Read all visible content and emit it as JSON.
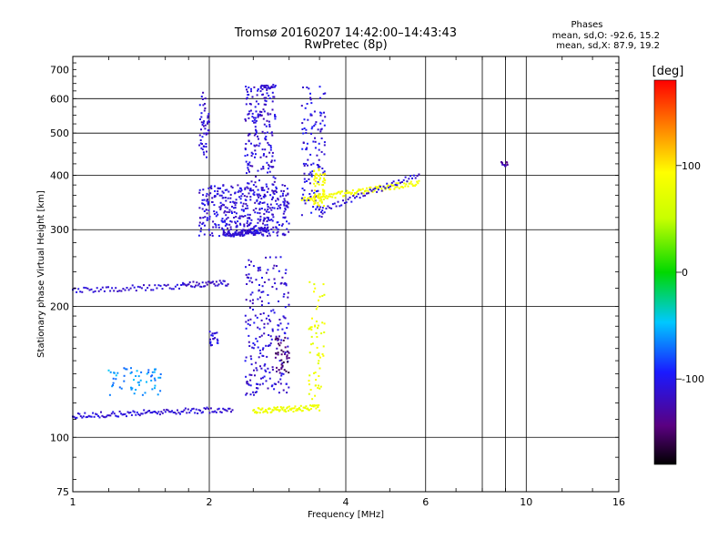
{
  "chart_data": {
    "type": "scatter",
    "title": "Tromsø 20160207 14:42:00–14:43:43",
    "subtitle": "RwPretec (8p)",
    "xlabel": "Frequency [MHz]",
    "ylabel": "Stationary phase Virtual Height [km]",
    "x_scale": "log",
    "y_scale": "log",
    "xlim": [
      1,
      16
    ],
    "ylim": [
      75,
      750
    ],
    "x_ticks": [
      "1",
      "2",
      "4",
      "6",
      "10",
      "16"
    ],
    "x_gridlines": [
      2,
      4,
      6,
      8,
      9,
      10
    ],
    "y_ticks": [
      "75",
      "100",
      "200",
      "300",
      "400",
      "500",
      "600",
      "700"
    ],
    "y_gridlines": [
      100,
      200,
      300,
      400,
      500,
      600
    ],
    "grid": true,
    "legend": {
      "heading": "Phases",
      "line1": "mean, sd,O:  -92.6, 15.2",
      "line2": "mean, sd,X:  87.9, 19.2"
    },
    "colorbar": {
      "label": "[deg]",
      "range": [
        -180,
        180
      ],
      "ticks": [
        "-100",
        "0",
        "100"
      ]
    },
    "traces": [
      {
        "f_start": 1.0,
        "f_end": 2.25,
        "h_start": 112,
        "h_end": 116,
        "phase": -110,
        "n": 120
      },
      {
        "f_start": 1.0,
        "f_end": 1.75,
        "h_start": 218,
        "h_end": 222,
        "phase": -110,
        "n": 60
      },
      {
        "f_start": 1.75,
        "f_end": 2.2,
        "h_start": 224,
        "h_end": 226,
        "phase": -115,
        "n": 40
      },
      {
        "f_start": 2.15,
        "f_end": 2.7,
        "h_start": 292,
        "h_end": 300,
        "phase": -110,
        "n": 100
      },
      {
        "f_start": 2.5,
        "f_end": 3.5,
        "h_start": 115,
        "h_end": 117,
        "phase": 80,
        "n": 80
      },
      {
        "f_start": 3.2,
        "f_end": 5.8,
        "h_start": 350,
        "h_end": 385,
        "phase": 85,
        "n": 120
      },
      {
        "f_start": 3.5,
        "f_end": 5.8,
        "h_start": 330,
        "h_end": 400,
        "phase": -110,
        "n": 60
      },
      {
        "f_start": 2.6,
        "f_end": 2.8,
        "h_start": 640,
        "h_end": 640,
        "phase": -110,
        "n": 20
      }
    ],
    "clusters": [
      {
        "f_min": 1.9,
        "f_max": 3.0,
        "h_min": 290,
        "h_max": 380,
        "phase": -110,
        "n": 400
      },
      {
        "f_min": 2.4,
        "f_max": 2.8,
        "h_min": 380,
        "h_max": 640,
        "phase": -110,
        "n": 180
      },
      {
        "f_min": 3.2,
        "f_max": 3.6,
        "h_min": 320,
        "h_max": 640,
        "phase": -105,
        "n": 120
      },
      {
        "f_min": 3.4,
        "f_max": 3.6,
        "h_min": 340,
        "h_max": 420,
        "phase": 90,
        "n": 60
      },
      {
        "f_min": 2.4,
        "f_max": 3.0,
        "h_min": 125,
        "h_max": 260,
        "phase": -110,
        "n": 220
      },
      {
        "f_min": 2.8,
        "f_max": 3.0,
        "h_min": 140,
        "h_max": 170,
        "phase": -150,
        "n": 40
      },
      {
        "f_min": 3.3,
        "f_max": 3.6,
        "h_min": 120,
        "h_max": 230,
        "phase": 80,
        "n": 60
      },
      {
        "f_min": 1.9,
        "f_max": 2.0,
        "h_min": 440,
        "h_max": 620,
        "phase": -110,
        "n": 50
      },
      {
        "f_min": 1.2,
        "f_max": 1.6,
        "h_min": 125,
        "h_max": 145,
        "phase": -60,
        "n": 60
      },
      {
        "f_min": 2.0,
        "f_max": 2.1,
        "h_min": 160,
        "h_max": 175,
        "phase": -110,
        "n": 20
      },
      {
        "f_min": 8.8,
        "f_max": 9.1,
        "h_min": 420,
        "h_max": 430,
        "phase": -130,
        "n": 12
      }
    ]
  }
}
